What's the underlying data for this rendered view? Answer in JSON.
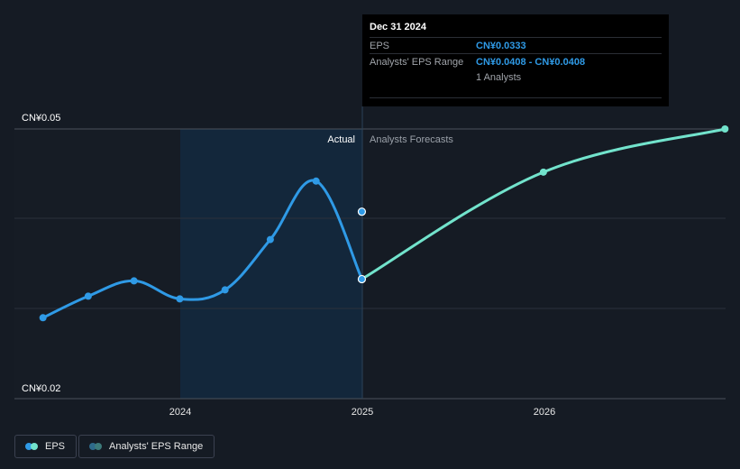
{
  "chart_data": {
    "type": "line",
    "ylim": [
      0.02,
      0.05
    ],
    "y_tick_labels": [
      "CN¥0.05",
      "CN¥0.02"
    ],
    "x_tick_labels": [
      "2024",
      "2025",
      "2026"
    ],
    "divider_x": "2024-12-31",
    "section_labels": {
      "actual": "Actual",
      "forecast": "Analysts Forecasts"
    },
    "series": [
      {
        "name": "EPS",
        "color": "#2f9ae6",
        "points": [
          {
            "x": "2023-03-31",
            "y": 0.029
          },
          {
            "x": "2023-06-30",
            "y": 0.0314
          },
          {
            "x": "2023-09-30",
            "y": 0.0331
          },
          {
            "x": "2023-12-31",
            "y": 0.0311
          },
          {
            "x": "2024-03-31",
            "y": 0.0321
          },
          {
            "x": "2024-06-30",
            "y": 0.0377
          },
          {
            "x": "2024-09-30",
            "y": 0.0442
          },
          {
            "x": "2024-12-31",
            "y": 0.0333
          }
        ]
      },
      {
        "name": "EPS Forecast",
        "color": "#72e3cc",
        "points": [
          {
            "x": "2024-12-31",
            "y": 0.0333
          },
          {
            "x": "2025-12-31",
            "y": 0.0452
          },
          {
            "x": "2026-12-31",
            "y": 0.05
          }
        ]
      },
      {
        "name": "Analysts' EPS Range",
        "color": "#2f9ae6",
        "points": [
          {
            "x": "2024-12-31",
            "y": 0.0408
          }
        ]
      }
    ],
    "grid": true,
    "legend_placement": "bottom-left"
  },
  "tooltip": {
    "date": "Dec 31 2024",
    "rows": [
      {
        "key": "EPS",
        "value": "CN¥0.0333"
      },
      {
        "key": "Analysts' EPS Range",
        "value": "CN¥0.0408 - CN¥0.0408"
      },
      {
        "key": "",
        "value": "1 Analysts"
      }
    ]
  },
  "legend": [
    {
      "label": "EPS",
      "colors": [
        "#2f9ae6",
        "#72e3cc"
      ]
    },
    {
      "label": "Analysts' EPS Range",
      "colors": [
        "#2e6a8a",
        "#3c7a7a"
      ]
    }
  ]
}
